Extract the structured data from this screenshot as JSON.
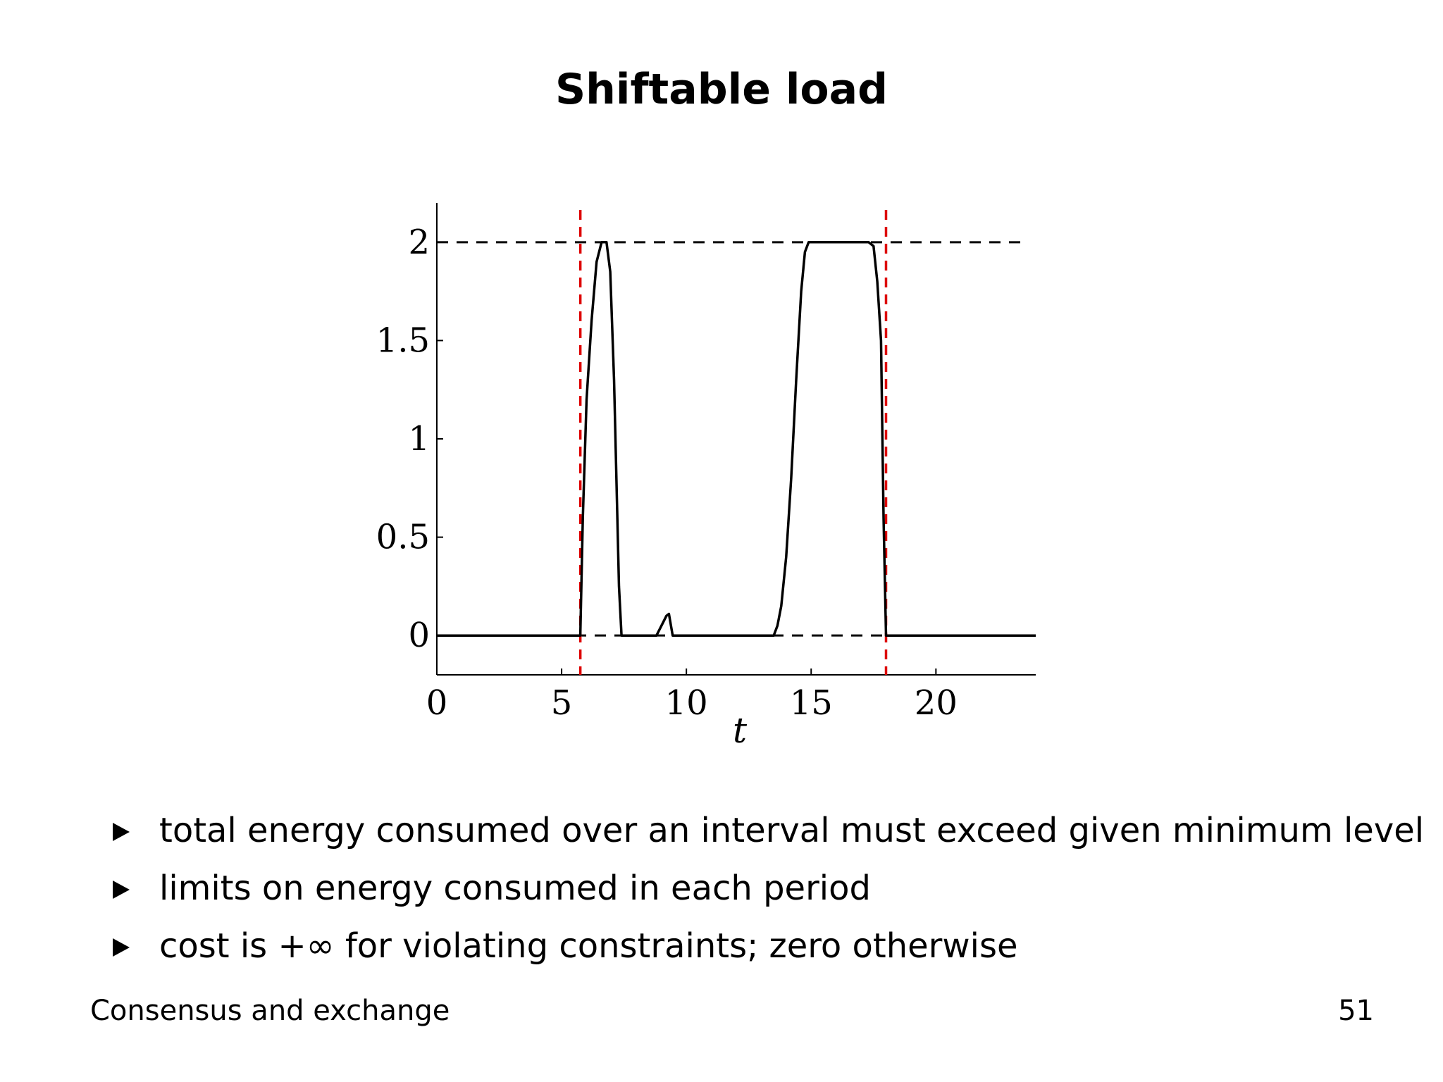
{
  "slide": {
    "title": "Shiftable load",
    "bullets": [
      "total energy consumed over an interval must exceed given minimum level",
      "limits on energy consumed in each period",
      "cost is +∞ for violating constraints; zero otherwise"
    ],
    "footer_left": "Consensus and exchange",
    "page_number": "51"
  },
  "chart_data": {
    "type": "line",
    "title": "",
    "xlabel": "t",
    "ylabel": "",
    "xlim": [
      0,
      24
    ],
    "ylim": [
      -0.2,
      2.2
    ],
    "xticks": [
      "0",
      "5",
      "10",
      "15",
      "20"
    ],
    "yticks": [
      "0",
      "0.5",
      "1",
      "1.5",
      "2"
    ],
    "grid": false,
    "series": [
      {
        "color": "#000000",
        "style": "solid",
        "x": [
          0,
          5.75,
          5.85,
          6.0,
          6.2,
          6.4,
          6.6,
          6.8,
          6.95,
          7.1,
          7.3,
          7.4,
          8.0,
          8.8,
          9.0,
          9.2,
          9.3,
          9.45,
          12.0,
          13.5,
          13.65,
          13.8,
          14.0,
          14.2,
          14.4,
          14.6,
          14.75,
          14.9,
          15.5,
          16.5,
          17.3,
          17.5,
          17.65,
          17.8,
          17.9,
          18.0,
          24.0
        ],
        "y": [
          0,
          0,
          0.6,
          1.2,
          1.6,
          1.9,
          2.0,
          2.0,
          1.85,
          1.3,
          0.25,
          0,
          0,
          0,
          0.05,
          0.1,
          0.11,
          0,
          0,
          0,
          0.05,
          0.15,
          0.4,
          0.8,
          1.3,
          1.75,
          1.95,
          2.0,
          2.0,
          2.0,
          2.0,
          1.98,
          1.8,
          1.5,
          0.6,
          0,
          0
        ]
      }
    ],
    "reference_lines": [
      {
        "orientation": "horizontal",
        "value": 2,
        "color": "#000000",
        "style": "dashed"
      },
      {
        "orientation": "horizontal",
        "value": 0,
        "color": "#000000",
        "style": "dashed"
      },
      {
        "orientation": "vertical",
        "value": 5.75,
        "color": "#dd0000",
        "style": "dashed"
      },
      {
        "orientation": "vertical",
        "value": 18.0,
        "color": "#dd0000",
        "style": "dashed"
      }
    ]
  }
}
